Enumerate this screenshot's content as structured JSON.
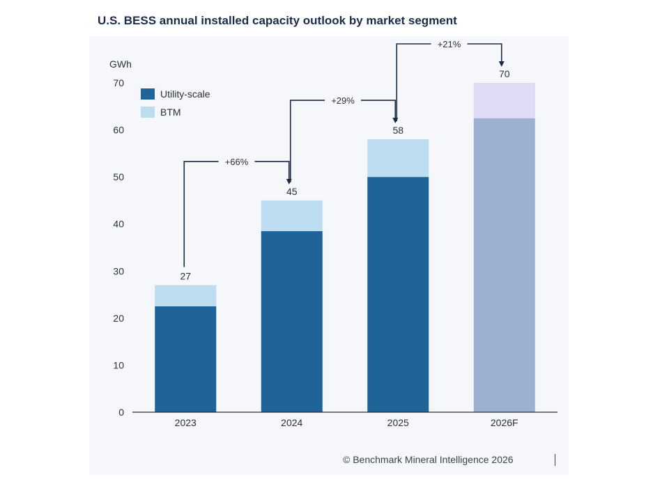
{
  "chart_data": {
    "type": "bar",
    "stacked": true,
    "title": "U.S. BESS annual installed capacity outlook by market segment",
    "ylabel": "GWh",
    "xlabel": "",
    "ylim": [
      0,
      70
    ],
    "yticks": [
      0,
      10,
      20,
      30,
      40,
      50,
      60,
      70
    ],
    "categories": [
      "2023",
      "2024",
      "2025",
      "2026F"
    ],
    "series": [
      {
        "name": "Utility-scale",
        "values": [
          22.5,
          38.5,
          50,
          62.5
        ]
      },
      {
        "name": "BTM",
        "values": [
          4.5,
          6.5,
          8,
          7.5
        ]
      }
    ],
    "totals": [
      "27",
      "45",
      "58",
      "70"
    ],
    "growth": [
      {
        "from": 0,
        "to": 1,
        "label": "+66%"
      },
      {
        "from": 1,
        "to": 2,
        "label": "+29%"
      },
      {
        "from": 2,
        "to": 3,
        "label": "+21%"
      }
    ],
    "forecast_index": 3,
    "legend_position": "top-left",
    "colors": {
      "Utility-scale": "#1f6499",
      "BTM": "#bcdcf0",
      "Utility-scale-forecast": "#9cb1d2",
      "BTM-forecast": "#e0dcf6",
      "axis": "#2a2f3a",
      "arrow": "#1a2a44"
    }
  },
  "footer": "© Benchmark Mineral Intelligence 2026"
}
